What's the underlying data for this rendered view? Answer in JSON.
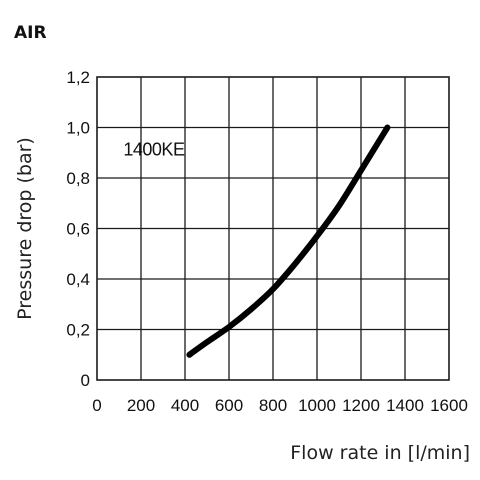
{
  "heading": "AIR",
  "chart_data": {
    "type": "line",
    "title": "",
    "xlabel": "Flow rate in [l/min]",
    "ylabel": "Pressure drop (bar)",
    "xlim": [
      0,
      1600
    ],
    "ylim": [
      0,
      1.2
    ],
    "x_ticks": [
      0,
      200,
      400,
      600,
      800,
      1000,
      1200,
      1400,
      1600
    ],
    "x_tick_labels": [
      "0",
      "200",
      "400",
      "600",
      "800",
      "1000",
      "1200",
      "1400",
      "1600"
    ],
    "y_ticks": [
      0,
      0.2,
      0.4,
      0.6,
      0.8,
      1.0,
      1.2
    ],
    "y_tick_labels": [
      "0",
      "0,2",
      "0,4",
      "0,6",
      "0,8",
      "1,0",
      "1,2"
    ],
    "grid": true,
    "annotations": [
      {
        "text": "1400KE",
        "x": 120,
        "y": 0.89
      }
    ],
    "series": [
      {
        "name": "1400KE",
        "x": [
          420,
          500,
          600,
          700,
          800,
          900,
          1000,
          1100,
          1200,
          1320
        ],
        "y": [
          0.1,
          0.15,
          0.21,
          0.28,
          0.36,
          0.46,
          0.57,
          0.69,
          0.83,
          1.0
        ],
        "color": "#000000"
      }
    ]
  }
}
